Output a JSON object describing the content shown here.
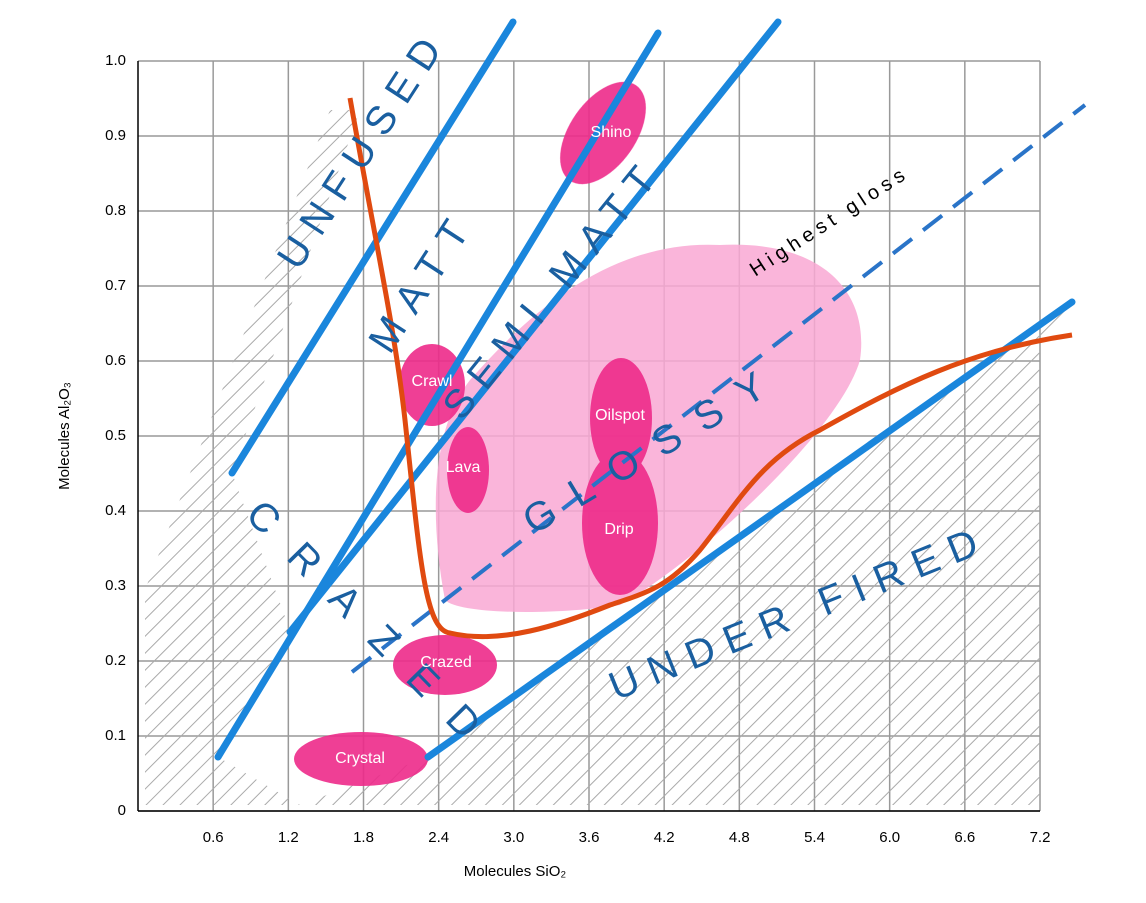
{
  "chart_data": {
    "type": "region",
    "x_label": "Molecules SiO₂",
    "y_label": "Molecules Al₂O₃",
    "xlim": [
      0,
      7.2
    ],
    "ylim": [
      0,
      1.0
    ],
    "xticks": [
      0.6,
      1.2,
      1.8,
      2.4,
      {
        "value": 3.0,
        "label": "3.0"
      },
      3.6,
      4.2,
      4.8,
      5.4,
      {
        "value": 6.0,
        "label": "6.0"
      },
      6.6,
      7.2
    ],
    "yticks": [
      0,
      0.1,
      0.2,
      0.3,
      0.4,
      0.5,
      0.6,
      0.7,
      0.8,
      0.9,
      {
        "value": 1.0,
        "label": "1.0"
      }
    ],
    "grid": true,
    "zones": [
      "UNFUSED",
      "MATT",
      "SEMI MATT",
      "GLOSSY",
      "UNDER FIRED",
      "CRAZED",
      "Highest gloss"
    ],
    "glazes": [
      "Shino",
      "Crawl",
      "Lava",
      "Oilspot",
      "Drip",
      "Crazed",
      "Crystal"
    ]
  }
}
